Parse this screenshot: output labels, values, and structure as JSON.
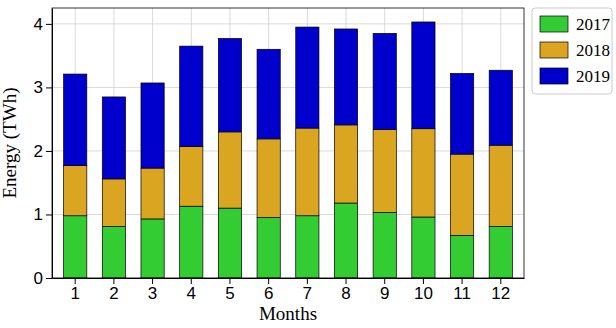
{
  "chart_data": {
    "type": "bar",
    "stacked": true,
    "x_label": "Months",
    "y_label": "Energy (TWh)",
    "categories": [
      "1",
      "2",
      "3",
      "4",
      "5",
      "6",
      "7",
      "8",
      "9",
      "10",
      "11",
      "12"
    ],
    "series": [
      {
        "name": "2017",
        "color": "#33cc33",
        "values": [
          0.98,
          0.81,
          0.93,
          1.13,
          1.1,
          0.95,
          0.98,
          1.18,
          1.03,
          0.96,
          0.67,
          0.81
        ]
      },
      {
        "name": "2018",
        "color": "#daa520",
        "values": [
          0.79,
          0.75,
          0.8,
          0.94,
          1.2,
          1.24,
          1.38,
          1.23,
          1.31,
          1.39,
          1.28,
          1.28
        ]
      },
      {
        "name": "2019",
        "color": "#0000cd",
        "values": [
          1.44,
          1.29,
          1.34,
          1.58,
          1.47,
          1.41,
          1.59,
          1.51,
          1.51,
          1.68,
          1.27,
          1.18
        ]
      }
    ],
    "ylim": [
      0,
      4.25
    ],
    "yticks": [
      0,
      1,
      2,
      3,
      4
    ],
    "grid": true,
    "legend": "upper right"
  }
}
